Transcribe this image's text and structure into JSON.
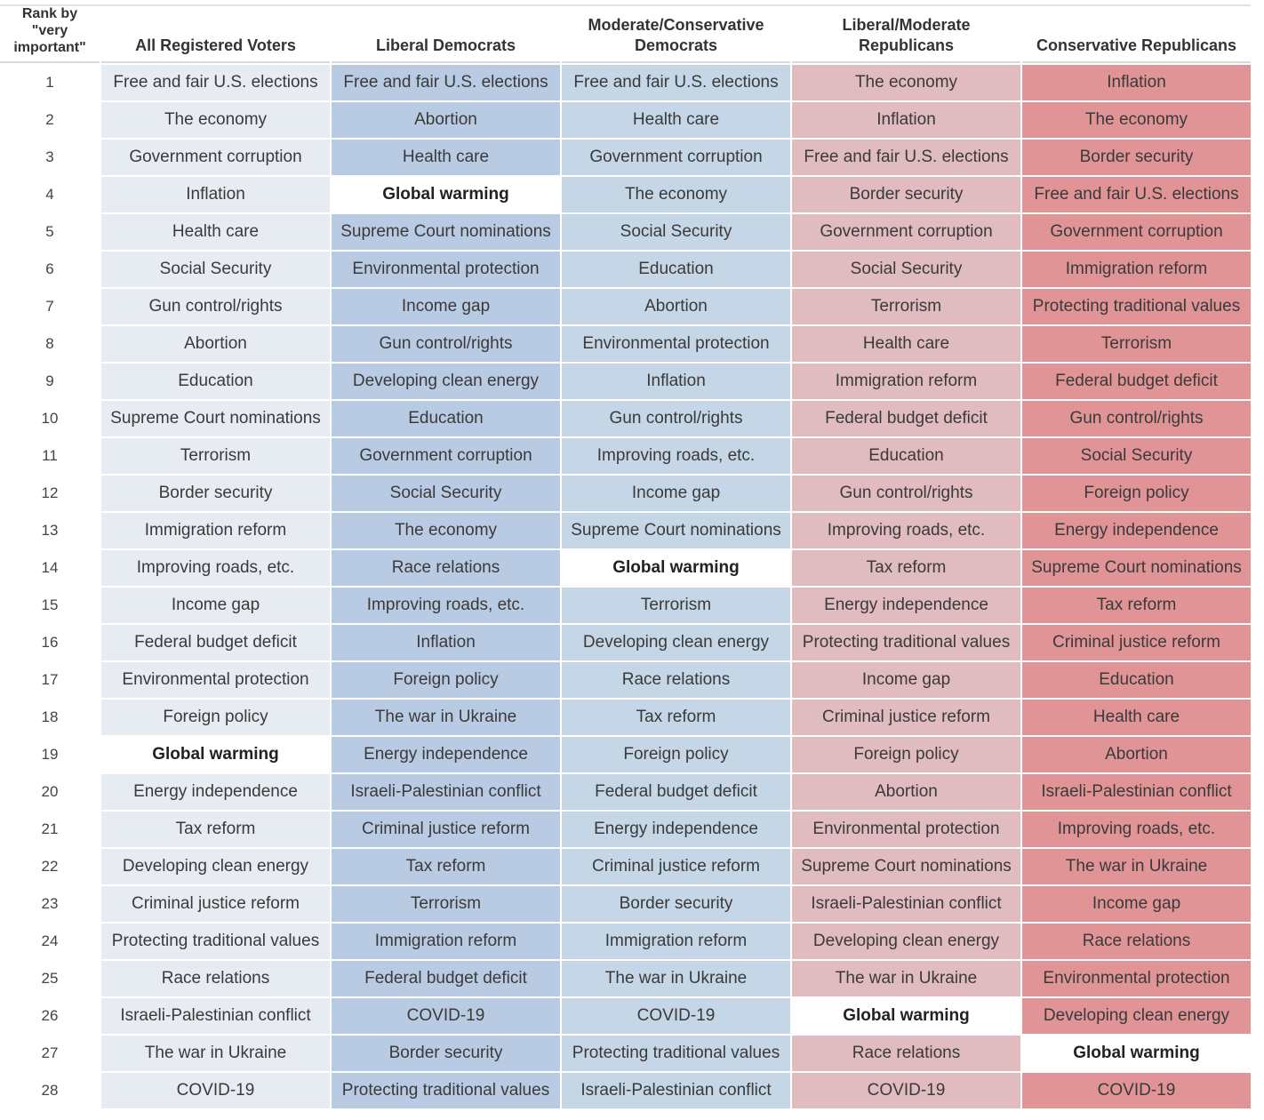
{
  "table": {
    "rank_header": "Rank by\n\"very\nimportant\"",
    "ranks": [
      1,
      2,
      3,
      4,
      5,
      6,
      7,
      8,
      9,
      10,
      11,
      12,
      13,
      14,
      15,
      16,
      17,
      18,
      19,
      20,
      21,
      22,
      23,
      24,
      25,
      26,
      27,
      28
    ],
    "columns": [
      {
        "name": "All Registered Voters",
        "color": "#e7ecf3",
        "highlight_rank": 19,
        "items": [
          "Free and fair U.S. elections",
          "The economy",
          "Government corruption",
          "Inflation",
          "Health care",
          "Social Security",
          "Gun control/rights",
          "Abortion",
          "Education",
          "Supreme Court nominations",
          "Terrorism",
          "Border security",
          "Immigration reform",
          "Improving roads, etc.",
          "Income gap",
          "Federal budget deficit",
          "Environmental protection",
          "Foreign policy",
          "Global warming",
          "Energy independence",
          "Tax reform",
          "Developing clean energy",
          "Criminal justice reform",
          "Protecting traditional values",
          "Race relations",
          "Israeli-Palestinian conflict",
          "The war in Ukraine",
          "COVID-19"
        ]
      },
      {
        "name": "Liberal Democrats",
        "color": "#b9cbe2",
        "highlight_rank": 4,
        "items": [
          "Free and fair U.S. elections",
          "Abortion",
          "Health care",
          "Global warming",
          "Supreme Court nominations",
          "Environmental protection",
          "Income gap",
          "Gun control/rights",
          "Developing clean energy",
          "Education",
          "Government corruption",
          "Social Security",
          "The economy",
          "Race relations",
          "Improving roads, etc.",
          "Inflation",
          "Foreign policy",
          "The war in Ukraine",
          "Energy independence",
          "Israeli-Palestinian conflict",
          "Criminal justice reform",
          "Tax reform",
          "Terrorism",
          "Immigration reform",
          "Federal budget deficit",
          "COVID-19",
          "Border security",
          "Protecting traditional values"
        ]
      },
      {
        "name": "Moderate/Conservative\nDemocrats",
        "color": "#c5d6e6",
        "highlight_rank": 14,
        "items": [
          "Free and fair U.S. elections",
          "Health care",
          "Government corruption",
          "The economy",
          "Social Security",
          "Education",
          "Abortion",
          "Environmental protection",
          "Inflation",
          "Gun control/rights",
          "Improving roads, etc.",
          "Income gap",
          "Supreme Court nominations",
          "Global warming",
          "Terrorism",
          "Developing clean energy",
          "Race relations",
          "Tax reform",
          "Foreign policy",
          "Federal budget deficit",
          "Energy independence",
          "Criminal justice reform",
          "Border security",
          "Immigration reform",
          "The war in Ukraine",
          "COVID-19",
          "Protecting traditional values",
          "Israeli-Palestinian conflict"
        ]
      },
      {
        "name": "Liberal/Moderate\nRepublicans",
        "color": "#e0bbc0",
        "highlight_rank": 26,
        "items": [
          "The economy",
          "Inflation",
          "Free and fair U.S. elections",
          "Border security",
          "Government corruption",
          "Social Security",
          "Terrorism",
          "Health care",
          "Immigration reform",
          "Federal budget deficit",
          "Education",
          "Gun control/rights",
          "Improving roads, etc.",
          "Tax reform",
          "Energy independence",
          "Protecting traditional values",
          "Income gap",
          "Criminal justice reform",
          "Foreign policy",
          "Abortion",
          "Environmental protection",
          "Supreme Court nominations",
          "Israeli-Palestinian conflict",
          "Developing clean energy",
          "The war in Ukraine",
          "Global warming",
          "Race relations",
          "COVID-19"
        ]
      },
      {
        "name": "Conservative Republicans",
        "color": "#e09496",
        "highlight_rank": 27,
        "items": [
          "Inflation",
          "The economy",
          "Border security",
          "Free and fair U.S. elections",
          "Government corruption",
          "Immigration reform",
          "Protecting traditional values",
          "Terrorism",
          "Federal budget deficit",
          "Gun control/rights",
          "Social Security",
          "Foreign policy",
          "Energy independence",
          "Supreme Court nominations",
          "Tax reform",
          "Criminal justice reform",
          "Education",
          "Health care",
          "Abortion",
          "Israeli-Palestinian conflict",
          "Improving roads, etc.",
          "The war in Ukraine",
          "Income gap",
          "Race relations",
          "Environmental protection",
          "Developing clean energy",
          "Global warming",
          "COVID-19"
        ]
      }
    ]
  }
}
